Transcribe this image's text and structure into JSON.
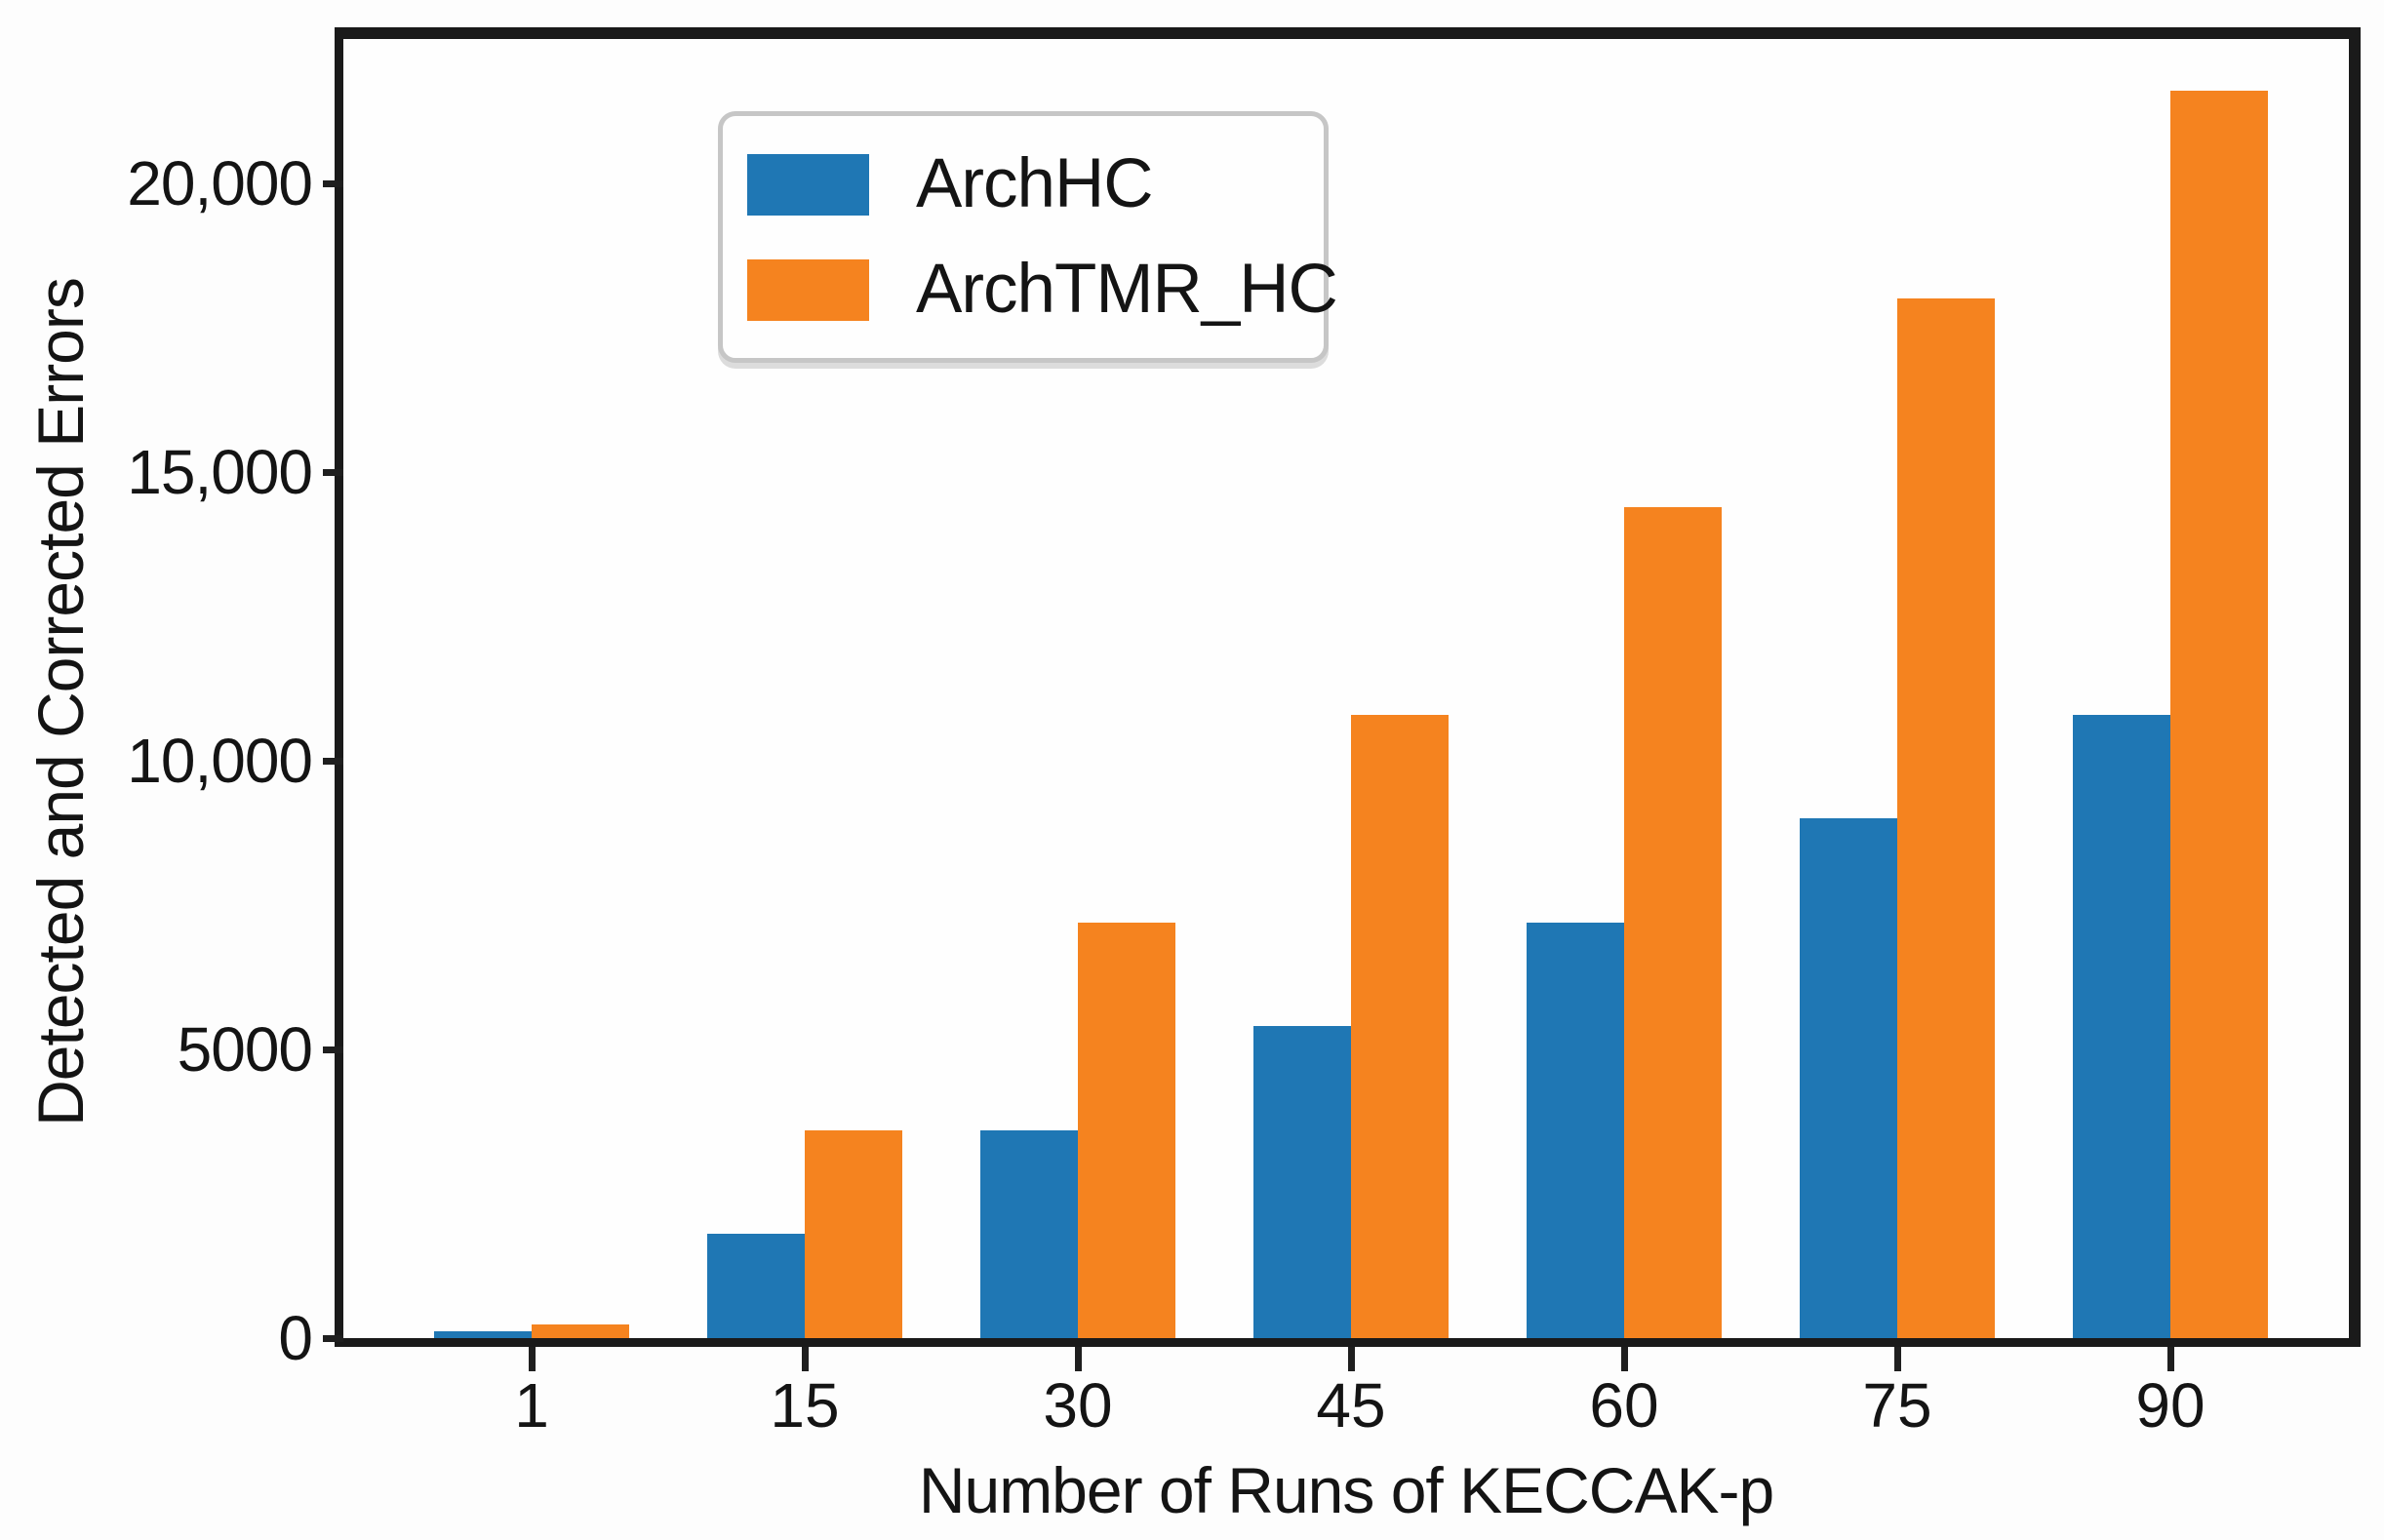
{
  "figure": {
    "background": "#ffffff",
    "spine_color": "#1a1a1a",
    "text_color": "#141414"
  },
  "chart_data": {
    "type": "bar",
    "title": "",
    "xlabel": "Number of Runs of KECCAK-p",
    "ylabel": "Detected and Corrected Errors",
    "categories": [
      "1",
      "15",
      "30",
      "45",
      "60",
      "75",
      "90"
    ],
    "series": [
      {
        "name": "ArchHC",
        "color": "#1f77b4",
        "values": [
          120,
          1800,
          3600,
          5400,
          7200,
          9000,
          10800
        ]
      },
      {
        "name": "ArchTMR_HC",
        "color": "#f5831f",
        "values": [
          240,
          3600,
          7200,
          10800,
          14400,
          18000,
          21600
        ]
      }
    ],
    "yticks": {
      "values": [
        0,
        5000,
        10000,
        15000,
        20000
      ],
      "labels": [
        "0",
        "5000",
        "10,000",
        "15,000",
        "20,000"
      ]
    },
    "ylim": [
      0,
      22700
    ],
    "grid": false,
    "legend_position": "upper left"
  }
}
